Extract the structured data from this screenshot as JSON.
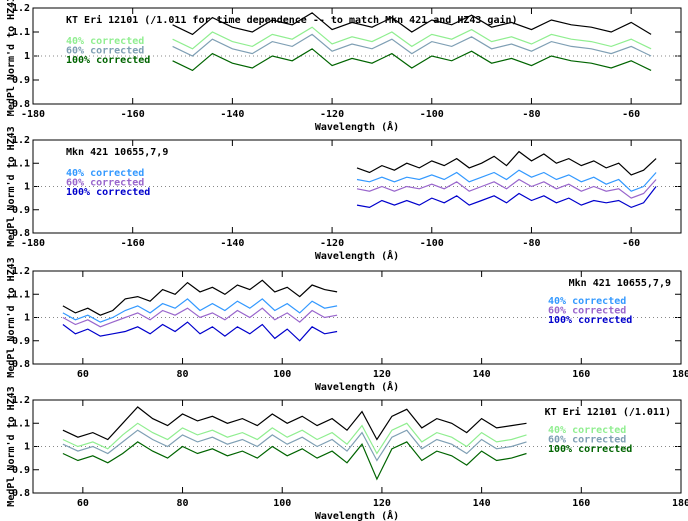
{
  "chart_data": [
    {
      "type": "line",
      "label": "KT Eri 12101 (/1.011 for time dependence -- to match Mkn 421 and HZ43 gain)",
      "xlabel": "Wavelength (Å)",
      "ylabel": "MedPl Norm'd to HZ43",
      "legend": "upper left",
      "xlim": [
        -180,
        -50
      ],
      "ylim": [
        0.8,
        1.2
      ],
      "xticks": [
        -180,
        -160,
        -140,
        -120,
        -100,
        -80,
        -60
      ],
      "yticks": [
        0.8,
        0.9,
        1,
        1.1,
        1.2
      ],
      "hline": 1,
      "x": [
        -152,
        -148,
        -144,
        -140,
        -136,
        -132,
        -128,
        -124,
        -120,
        -116,
        -112,
        -108,
        -104,
        -100,
        -96,
        -92,
        -88,
        -84,
        -80,
        -76,
        -72,
        -68,
        -64,
        -60,
        -56
      ],
      "series": [
        {
          "color": "#000000",
          "values": [
            1.13,
            1.09,
            1.16,
            1.12,
            1.1,
            1.15,
            1.13,
            1.18,
            1.11,
            1.14,
            1.12,
            1.16,
            1.1,
            1.15,
            1.13,
            1.17,
            1.12,
            1.14,
            1.11,
            1.15,
            1.13,
            1.12,
            1.1,
            1.14,
            1.09
          ]
        },
        {
          "name": "40% corrected",
          "color": "#90ee90",
          "values": [
            1.07,
            1.03,
            1.1,
            1.06,
            1.04,
            1.09,
            1.07,
            1.12,
            1.05,
            1.08,
            1.06,
            1.1,
            1.04,
            1.09,
            1.07,
            1.11,
            1.06,
            1.08,
            1.05,
            1.09,
            1.07,
            1.06,
            1.04,
            1.07,
            1.03
          ]
        },
        {
          "name": "60% corrected",
          "color": "#7f9fb4",
          "values": [
            1.04,
            1.0,
            1.07,
            1.03,
            1.01,
            1.06,
            1.04,
            1.09,
            1.02,
            1.05,
            1.03,
            1.07,
            1.01,
            1.06,
            1.04,
            1.08,
            1.03,
            1.05,
            1.02,
            1.06,
            1.04,
            1.03,
            1.01,
            1.04,
            1.0
          ]
        },
        {
          "name": "100% corrected",
          "color": "#006400",
          "values": [
            0.98,
            0.94,
            1.01,
            0.97,
            0.95,
            1.0,
            0.98,
            1.03,
            0.96,
            0.99,
            0.97,
            1.01,
            0.95,
            1.0,
            0.98,
            1.02,
            0.97,
            0.99,
            0.96,
            1.0,
            0.98,
            0.97,
            0.95,
            0.98,
            0.94
          ]
        }
      ]
    },
    {
      "type": "line",
      "label": "Mkn 421 10655,7,9",
      "xlabel": "Wavelength (Å)",
      "ylabel": "MedPl Norm'd to HZ43",
      "legend": "upper left",
      "xlim": [
        -180,
        -50
      ],
      "ylim": [
        0.8,
        1.2
      ],
      "xticks": [
        -180,
        -160,
        -140,
        -120,
        -100,
        -80,
        -60
      ],
      "yticks": [
        0.8,
        0.9,
        1,
        1.1,
        1.2
      ],
      "hline": 1,
      "x": [
        -115,
        -112.5,
        -110,
        -107.5,
        -105,
        -102.5,
        -100,
        -97.5,
        -95,
        -92.5,
        -90,
        -87.5,
        -85,
        -82.5,
        -80,
        -77.5,
        -75,
        -72.5,
        -70,
        -67.5,
        -65,
        -62.5,
        -60,
        -57.5,
        -55
      ],
      "series": [
        {
          "color": "#000000",
          "values": [
            1.08,
            1.06,
            1.09,
            1.07,
            1.1,
            1.08,
            1.11,
            1.09,
            1.12,
            1.08,
            1.1,
            1.13,
            1.09,
            1.15,
            1.11,
            1.14,
            1.1,
            1.12,
            1.09,
            1.11,
            1.08,
            1.1,
            1.05,
            1.07,
            1.12
          ]
        },
        {
          "name": "40% corrected",
          "color": "#3399ff",
          "values": [
            1.03,
            1.02,
            1.04,
            1.02,
            1.04,
            1.03,
            1.05,
            1.03,
            1.06,
            1.02,
            1.04,
            1.06,
            1.03,
            1.07,
            1.04,
            1.06,
            1.03,
            1.05,
            1.02,
            1.04,
            1.01,
            1.03,
            0.98,
            1.0,
            1.06
          ]
        },
        {
          "name": "60% corrected",
          "color": "#9966cc",
          "values": [
            0.99,
            0.98,
            1.0,
            0.98,
            1.0,
            0.99,
            1.01,
            0.99,
            1.02,
            0.98,
            1.0,
            1.02,
            0.99,
            1.03,
            1.0,
            1.02,
            0.99,
            1.01,
            0.98,
            1.0,
            0.98,
            0.99,
            0.95,
            0.97,
            1.03
          ]
        },
        {
          "name": "100% corrected",
          "color": "#0000cc",
          "values": [
            0.92,
            0.91,
            0.94,
            0.92,
            0.94,
            0.92,
            0.95,
            0.93,
            0.96,
            0.92,
            0.94,
            0.96,
            0.93,
            0.97,
            0.94,
            0.96,
            0.93,
            0.95,
            0.92,
            0.94,
            0.93,
            0.94,
            0.91,
            0.93,
            1.0
          ]
        }
      ]
    },
    {
      "type": "line",
      "label": "Mkn 421 10655,7,9",
      "xlabel": "Wavelength (Å)",
      "ylabel": "MedPl Norm'd to HZ43",
      "legend": "upper right",
      "xlim": [
        50,
        180
      ],
      "ylim": [
        0.8,
        1.2
      ],
      "xticks": [
        60,
        80,
        100,
        120,
        140,
        160,
        180
      ],
      "yticks": [
        0.8,
        0.9,
        1,
        1.1,
        1.2
      ],
      "hline": 1,
      "x": [
        56,
        58.5,
        61,
        63.5,
        66,
        68.5,
        71,
        73.5,
        76,
        78.5,
        81,
        83.5,
        86,
        88.5,
        91,
        93.5,
        96,
        98.5,
        101,
        103.5,
        106,
        108.5,
        111
      ],
      "series": [
        {
          "color": "#000000",
          "values": [
            1.05,
            1.02,
            1.04,
            1.01,
            1.03,
            1.08,
            1.09,
            1.07,
            1.12,
            1.1,
            1.15,
            1.11,
            1.13,
            1.1,
            1.14,
            1.12,
            1.16,
            1.11,
            1.13,
            1.09,
            1.14,
            1.12,
            1.11
          ]
        },
        {
          "name": "40% corrected",
          "color": "#3399ff",
          "values": [
            1.02,
            0.99,
            1.01,
            0.98,
            1.0,
            1.03,
            1.05,
            1.02,
            1.06,
            1.04,
            1.08,
            1.03,
            1.06,
            1.03,
            1.07,
            1.04,
            1.08,
            1.03,
            1.06,
            1.02,
            1.07,
            1.04,
            1.05
          ]
        },
        {
          "name": "60% corrected",
          "color": "#9966cc",
          "values": [
            1.0,
            0.97,
            0.99,
            0.96,
            0.98,
            1.0,
            1.02,
            0.99,
            1.03,
            1.01,
            1.04,
            1.0,
            1.02,
            0.99,
            1.03,
            1.0,
            1.04,
            0.99,
            1.02,
            0.98,
            1.03,
            1.0,
            1.01
          ]
        },
        {
          "name": "100% corrected",
          "color": "#0000cc",
          "values": [
            0.97,
            0.93,
            0.95,
            0.92,
            0.93,
            0.94,
            0.96,
            0.93,
            0.97,
            0.94,
            0.98,
            0.93,
            0.96,
            0.92,
            0.96,
            0.93,
            0.97,
            0.91,
            0.95,
            0.9,
            0.96,
            0.93,
            0.94
          ]
        }
      ]
    },
    {
      "type": "line",
      "label": "KT Eri 12101 (/1.011)",
      "xlabel": "Wavelength (Å)",
      "ylabel": "MedPl Norm'd to HZ43",
      "legend": "upper right",
      "xlim": [
        50,
        180
      ],
      "ylim": [
        0.8,
        1.2
      ],
      "xticks": [
        60,
        80,
        100,
        120,
        140,
        160,
        180
      ],
      "yticks": [
        0.8,
        0.9,
        1,
        1.1,
        1.2
      ],
      "hline": 1,
      "x": [
        56,
        59,
        62,
        65,
        68,
        71,
        74,
        77,
        80,
        83,
        86,
        89,
        92,
        95,
        98,
        101,
        104,
        107,
        110,
        113,
        116,
        119,
        122,
        125,
        128,
        131,
        134,
        137,
        140,
        143,
        146,
        149
      ],
      "series": [
        {
          "color": "#000000",
          "values": [
            1.07,
            1.04,
            1.06,
            1.03,
            1.1,
            1.17,
            1.12,
            1.09,
            1.14,
            1.11,
            1.13,
            1.1,
            1.12,
            1.09,
            1.14,
            1.1,
            1.13,
            1.09,
            1.12,
            1.07,
            1.15,
            1.03,
            1.13,
            1.16,
            1.08,
            1.12,
            1.1,
            1.06,
            1.12,
            1.08,
            1.09,
            1.1
          ]
        },
        {
          "name": "40% corrected",
          "color": "#90ee90",
          "values": [
            1.03,
            1.0,
            1.02,
            0.99,
            1.05,
            1.1,
            1.06,
            1.03,
            1.08,
            1.05,
            1.07,
            1.04,
            1.06,
            1.03,
            1.08,
            1.04,
            1.07,
            1.03,
            1.06,
            1.01,
            1.09,
            0.97,
            1.07,
            1.1,
            1.02,
            1.06,
            1.04,
            1.0,
            1.06,
            1.02,
            1.03,
            1.05
          ]
        },
        {
          "name": "60% corrected",
          "color": "#7f9fb4",
          "values": [
            1.01,
            0.98,
            1.0,
            0.97,
            1.02,
            1.07,
            1.03,
            1.0,
            1.05,
            1.02,
            1.04,
            1.01,
            1.03,
            1.0,
            1.05,
            1.01,
            1.04,
            1.0,
            1.03,
            0.98,
            1.06,
            0.94,
            1.04,
            1.07,
            0.99,
            1.03,
            1.01,
            0.97,
            1.03,
            0.99,
            1.0,
            1.02
          ]
        },
        {
          "name": "100% corrected",
          "color": "#006400",
          "values": [
            0.97,
            0.94,
            0.96,
            0.93,
            0.97,
            1.02,
            0.98,
            0.95,
            1.0,
            0.97,
            0.99,
            0.96,
            0.98,
            0.95,
            1.0,
            0.96,
            0.99,
            0.95,
            0.98,
            0.93,
            1.01,
            0.86,
            0.99,
            1.02,
            0.94,
            0.98,
            0.96,
            0.92,
            0.98,
            0.94,
            0.95,
            0.97
          ]
        }
      ]
    }
  ]
}
